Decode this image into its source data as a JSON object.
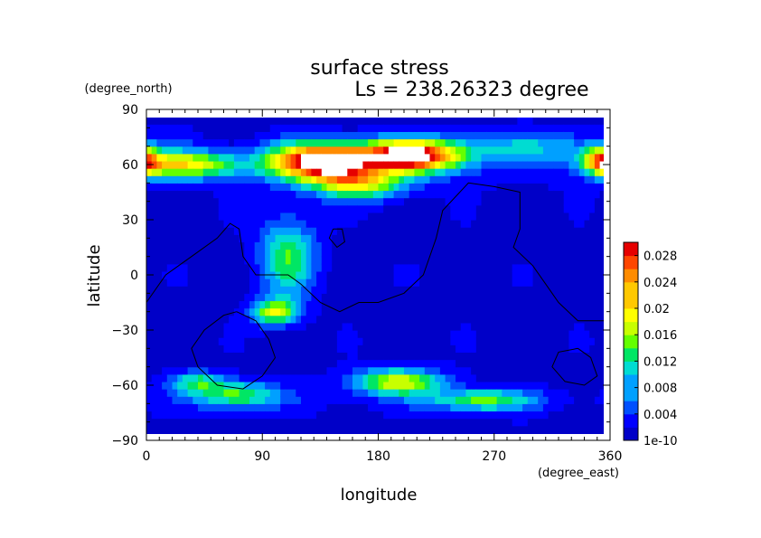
{
  "chart_data": {
    "type": "heatmap",
    "title": "surface stress",
    "subtitle": "Ls = 238.26323 degree",
    "xlabel": "longitude",
    "ylabel": "latitude",
    "xunits": "(degree_east)",
    "yunits": "(degree_north)",
    "xlim": [
      0,
      360
    ],
    "ylim": [
      -90,
      90
    ],
    "xticks": [
      "0",
      "90",
      "180",
      "270",
      "360"
    ],
    "yticks": [
      "90",
      "60",
      "30",
      "0",
      "−30",
      "−60",
      "−90"
    ],
    "colorbar": {
      "labels": [
        "0.028",
        "0.024",
        "0.02",
        "0.016",
        "0.012",
        "0.008",
        "0.004",
        "1e-10"
      ],
      "values": [
        0.028,
        0.024,
        0.02,
        0.016,
        0.012,
        0.008,
        0.004,
        1e-10
      ],
      "range": [
        0,
        0.03
      ],
      "colors": [
        "#0000c8",
        "#0000ff",
        "#0050ff",
        "#00a0ff",
        "#00dcd2",
        "#00e664",
        "#64ff00",
        "#c8ff00",
        "#ffff00",
        "#ffc800",
        "#ff8c00",
        "#ff4600",
        "#e60000",
        "#ffffff"
      ]
    },
    "grid": false,
    "legend": "colorbar-right",
    "features": [
      {
        "lon": 135,
        "lat": 62,
        "dlon": 55,
        "dlat": 14,
        "value": 0.031
      },
      {
        "lon": 205,
        "lat": 65,
        "dlon": 55,
        "dlat": 12,
        "value": 0.031
      },
      {
        "lon": 30,
        "lat": 60,
        "dlon": 60,
        "dlat": 10,
        "value": 0.017
      },
      {
        "lon": 355,
        "lat": 62,
        "dlon": 20,
        "dlat": 10,
        "value": 0.02
      },
      {
        "lon": 165,
        "lat": 50,
        "dlon": 50,
        "dlat": 12,
        "value": 0.016
      },
      {
        "lon": 300,
        "lat": 70,
        "dlon": 100,
        "dlat": 12,
        "value": 0.007
      },
      {
        "lon": 110,
        "lat": 10,
        "dlon": 30,
        "dlat": 30,
        "value": 0.012
      },
      {
        "lon": 100,
        "lat": -20,
        "dlon": 25,
        "dlat": 10,
        "value": 0.016
      },
      {
        "lon": 70,
        "lat": -65,
        "dlon": 45,
        "dlat": 10,
        "value": 0.012
      },
      {
        "lon": 195,
        "lat": -58,
        "dlon": 50,
        "dlat": 10,
        "value": 0.016
      },
      {
        "lon": 260,
        "lat": -68,
        "dlon": 55,
        "dlat": 8,
        "value": 0.012
      },
      {
        "lon": 40,
        "lat": -58,
        "dlon": 30,
        "dlat": 8,
        "value": 0.01
      }
    ],
    "contours": [
      [
        [
          0,
          -15
        ],
        [
          15,
          0
        ],
        [
          35,
          10
        ],
        [
          55,
          20
        ],
        [
          65,
          28
        ],
        [
          72,
          25
        ],
        [
          75,
          10
        ],
        [
          85,
          0
        ],
        [
          100,
          0
        ],
        [
          110,
          0
        ],
        [
          120,
          -5
        ],
        [
          135,
          -15
        ],
        [
          150,
          -20
        ],
        [
          165,
          -15
        ],
        [
          180,
          -15
        ],
        [
          200,
          -10
        ],
        [
          215,
          0
        ],
        [
          225,
          20
        ],
        [
          230,
          35
        ],
        [
          250,
          50
        ],
        [
          270,
          48
        ],
        [
          290,
          45
        ],
        [
          290,
          25
        ],
        [
          285,
          15
        ],
        [
          300,
          5
        ],
        [
          310,
          -5
        ],
        [
          320,
          -15
        ],
        [
          335,
          -25
        ],
        [
          355,
          -25
        ],
        [
          360,
          -20
        ]
      ],
      [
        [
          70,
          -20
        ],
        [
          85,
          -25
        ],
        [
          95,
          -35
        ],
        [
          100,
          -45
        ],
        [
          90,
          -55
        ],
        [
          75,
          -62
        ],
        [
          55,
          -60
        ],
        [
          40,
          -50
        ],
        [
          35,
          -40
        ],
        [
          45,
          -30
        ],
        [
          60,
          -22
        ],
        [
          70,
          -20
        ]
      ],
      [
        [
          335,
          -40
        ],
        [
          345,
          -45
        ],
        [
          350,
          -55
        ],
        [
          340,
          -60
        ],
        [
          325,
          -58
        ],
        [
          315,
          -50
        ],
        [
          320,
          -42
        ],
        [
          335,
          -40
        ]
      ],
      [
        [
          145,
          25
        ],
        [
          152,
          25
        ],
        [
          154,
          18
        ],
        [
          148,
          15
        ],
        [
          142,
          20
        ],
        [
          145,
          25
        ]
      ]
    ]
  }
}
